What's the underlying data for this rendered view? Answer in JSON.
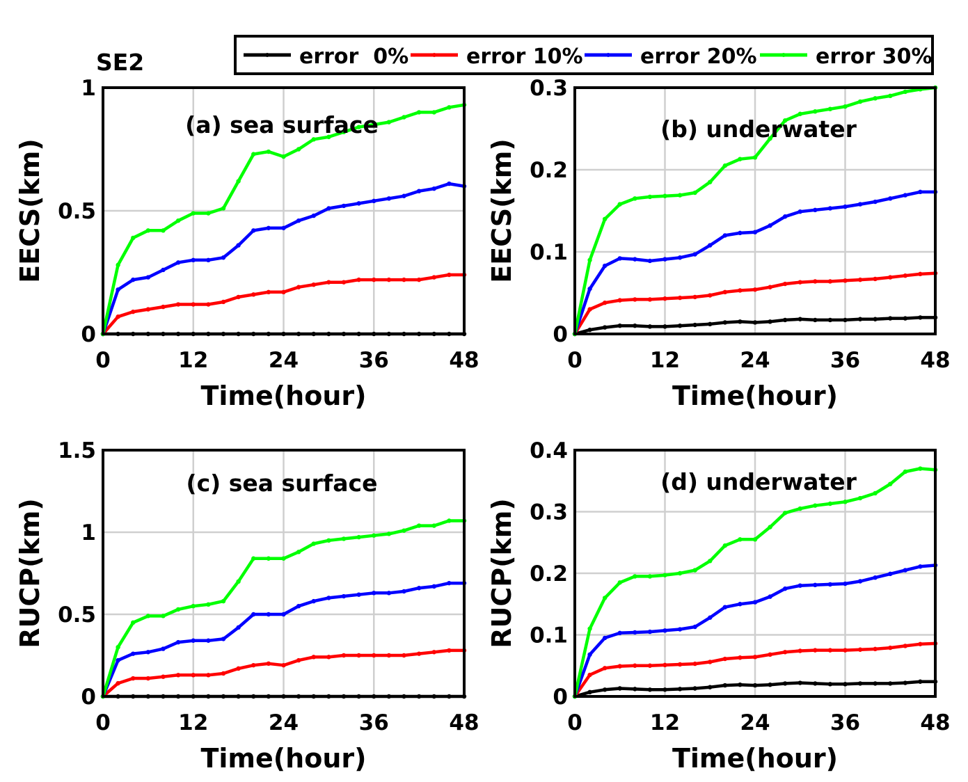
{
  "figure": {
    "tag": "SE2",
    "colors": {
      "error 0%": "#000000",
      "error 10%": "#ff0000",
      "error 20%": "#0000ff",
      "error 30%": "#00ff00"
    }
  },
  "legend": {
    "placement": "top",
    "items": [
      {
        "label": "error  0%",
        "color": "#000000"
      },
      {
        "label": "error 10%",
        "color": "#ff0000"
      },
      {
        "label": "error 20%",
        "color": "#0000ff"
      },
      {
        "label": "error 30%",
        "color": "#00ff00"
      }
    ]
  },
  "chart_data": [
    {
      "type": "line",
      "panel": "a",
      "annotation": "(a) sea surface",
      "xlabel": "Time(hour)",
      "ylabel": "EECS(km)",
      "xlim": [
        0,
        48
      ],
      "ylim": [
        0,
        1
      ],
      "xticks": [
        "0",
        "12",
        "24",
        "36",
        "48"
      ],
      "yticks": [
        "0",
        "0.5",
        "1"
      ],
      "grid": true,
      "x": [
        0,
        2,
        4,
        6,
        8,
        10,
        12,
        14,
        16,
        18,
        20,
        22,
        24,
        26,
        28,
        30,
        32,
        34,
        36,
        38,
        40,
        42,
        44,
        46,
        48
      ],
      "series": [
        {
          "name": "error  0%",
          "values": [
            0,
            0,
            0,
            0,
            0,
            0,
            0,
            0,
            0,
            0,
            0,
            0,
            0,
            0,
            0,
            0,
            0,
            0,
            0,
            0,
            0,
            0,
            0,
            0,
            0
          ]
        },
        {
          "name": "error 10%",
          "values": [
            0,
            0.07,
            0.09,
            0.1,
            0.11,
            0.12,
            0.12,
            0.12,
            0.13,
            0.15,
            0.16,
            0.17,
            0.17,
            0.19,
            0.2,
            0.21,
            0.21,
            0.22,
            0.22,
            0.22,
            0.22,
            0.22,
            0.23,
            0.24,
            0.24
          ]
        },
        {
          "name": "error 20%",
          "values": [
            0,
            0.18,
            0.22,
            0.23,
            0.26,
            0.29,
            0.3,
            0.3,
            0.31,
            0.36,
            0.42,
            0.43,
            0.43,
            0.46,
            0.48,
            0.51,
            0.52,
            0.53,
            0.54,
            0.55,
            0.56,
            0.58,
            0.59,
            0.61,
            0.6
          ]
        },
        {
          "name": "error 30%",
          "values": [
            0,
            0.28,
            0.39,
            0.42,
            0.42,
            0.46,
            0.49,
            0.49,
            0.51,
            0.62,
            0.73,
            0.74,
            0.72,
            0.75,
            0.79,
            0.8,
            0.82,
            0.84,
            0.85,
            0.86,
            0.88,
            0.9,
            0.9,
            0.92,
            0.93
          ]
        }
      ]
    },
    {
      "type": "line",
      "panel": "b",
      "annotation": "(b) underwater",
      "xlabel": "Time(hour)",
      "ylabel": "EECS(km)",
      "xlim": [
        0,
        48
      ],
      "ylim": [
        0,
        0.3
      ],
      "xticks": [
        "0",
        "12",
        "24",
        "36",
        "48"
      ],
      "yticks": [
        "0",
        "0.1",
        "0.2",
        "0.3"
      ],
      "grid": true,
      "x": [
        0,
        2,
        4,
        6,
        8,
        10,
        12,
        14,
        16,
        18,
        20,
        22,
        24,
        26,
        28,
        30,
        32,
        34,
        36,
        38,
        40,
        42,
        44,
        46,
        48
      ],
      "series": [
        {
          "name": "error  0%",
          "values": [
            0,
            0.005,
            0.008,
            0.01,
            0.01,
            0.009,
            0.009,
            0.01,
            0.011,
            0.012,
            0.014,
            0.015,
            0.014,
            0.015,
            0.017,
            0.018,
            0.017,
            0.017,
            0.017,
            0.018,
            0.018,
            0.019,
            0.019,
            0.02,
            0.02
          ]
        },
        {
          "name": "error 10%",
          "values": [
            0,
            0.03,
            0.038,
            0.041,
            0.042,
            0.042,
            0.043,
            0.044,
            0.045,
            0.047,
            0.051,
            0.053,
            0.054,
            0.057,
            0.061,
            0.063,
            0.064,
            0.064,
            0.065,
            0.066,
            0.067,
            0.069,
            0.071,
            0.073,
            0.074
          ]
        },
        {
          "name": "error 20%",
          "values": [
            0,
            0.055,
            0.083,
            0.092,
            0.091,
            0.089,
            0.091,
            0.093,
            0.097,
            0.108,
            0.12,
            0.123,
            0.124,
            0.132,
            0.143,
            0.149,
            0.151,
            0.153,
            0.155,
            0.158,
            0.161,
            0.165,
            0.169,
            0.173,
            0.173
          ]
        },
        {
          "name": "error 30%",
          "values": [
            0,
            0.09,
            0.14,
            0.158,
            0.165,
            0.167,
            0.168,
            0.169,
            0.172,
            0.185,
            0.205,
            0.213,
            0.215,
            0.238,
            0.26,
            0.268,
            0.271,
            0.274,
            0.277,
            0.283,
            0.287,
            0.29,
            0.295,
            0.298,
            0.3
          ]
        }
      ]
    },
    {
      "type": "line",
      "panel": "c",
      "annotation": "(c) sea surface",
      "xlabel": "Time(hour)",
      "ylabel": "RUCP(km)",
      "xlim": [
        0,
        48
      ],
      "ylim": [
        0,
        1.5
      ],
      "xticks": [
        "0",
        "12",
        "24",
        "36",
        "48"
      ],
      "yticks": [
        "0",
        "0.5",
        "1",
        "1.5"
      ],
      "grid": true,
      "x": [
        0,
        2,
        4,
        6,
        8,
        10,
        12,
        14,
        16,
        18,
        20,
        22,
        24,
        26,
        28,
        30,
        32,
        34,
        36,
        38,
        40,
        42,
        44,
        46,
        48
      ],
      "series": [
        {
          "name": "error  0%",
          "values": [
            0,
            0,
            0,
            0,
            0,
            0,
            0,
            0,
            0,
            0,
            0,
            0,
            0,
            0,
            0,
            0,
            0,
            0,
            0,
            0,
            0,
            0,
            0,
            0,
            0
          ]
        },
        {
          "name": "error 10%",
          "values": [
            0,
            0.08,
            0.11,
            0.11,
            0.12,
            0.13,
            0.13,
            0.13,
            0.14,
            0.17,
            0.19,
            0.2,
            0.19,
            0.22,
            0.24,
            0.24,
            0.25,
            0.25,
            0.25,
            0.25,
            0.25,
            0.26,
            0.27,
            0.28,
            0.28
          ]
        },
        {
          "name": "error 20%",
          "values": [
            0,
            0.22,
            0.26,
            0.27,
            0.29,
            0.33,
            0.34,
            0.34,
            0.35,
            0.42,
            0.5,
            0.5,
            0.5,
            0.55,
            0.58,
            0.6,
            0.61,
            0.62,
            0.63,
            0.63,
            0.64,
            0.66,
            0.67,
            0.69,
            0.69
          ]
        },
        {
          "name": "error 30%",
          "values": [
            0,
            0.3,
            0.45,
            0.49,
            0.49,
            0.53,
            0.55,
            0.56,
            0.58,
            0.7,
            0.84,
            0.84,
            0.84,
            0.88,
            0.93,
            0.95,
            0.96,
            0.97,
            0.98,
            0.99,
            1.01,
            1.04,
            1.04,
            1.07,
            1.07
          ]
        }
      ]
    },
    {
      "type": "line",
      "panel": "d",
      "annotation": "(d) underwater",
      "xlabel": "Time(hour)",
      "ylabel": "RUCP(km)",
      "xlim": [
        0,
        48
      ],
      "ylim": [
        0,
        0.4
      ],
      "xticks": [
        "0",
        "12",
        "24",
        "36",
        "48"
      ],
      "yticks": [
        "0",
        "0.1",
        "0.2",
        "0.3",
        "0.4"
      ],
      "grid": true,
      "x": [
        0,
        2,
        4,
        6,
        8,
        10,
        12,
        14,
        16,
        18,
        20,
        22,
        24,
        26,
        28,
        30,
        32,
        34,
        36,
        38,
        40,
        42,
        44,
        46,
        48
      ],
      "series": [
        {
          "name": "error  0%",
          "values": [
            0,
            0.007,
            0.011,
            0.013,
            0.012,
            0.011,
            0.011,
            0.012,
            0.013,
            0.015,
            0.018,
            0.019,
            0.018,
            0.019,
            0.021,
            0.022,
            0.021,
            0.02,
            0.02,
            0.021,
            0.021,
            0.021,
            0.022,
            0.024,
            0.024
          ]
        },
        {
          "name": "error 10%",
          "values": [
            0,
            0.035,
            0.046,
            0.049,
            0.05,
            0.05,
            0.051,
            0.052,
            0.053,
            0.056,
            0.061,
            0.063,
            0.064,
            0.068,
            0.072,
            0.074,
            0.075,
            0.075,
            0.075,
            0.076,
            0.077,
            0.079,
            0.082,
            0.085,
            0.086
          ]
        },
        {
          "name": "error 20%",
          "values": [
            0,
            0.068,
            0.095,
            0.103,
            0.104,
            0.105,
            0.107,
            0.109,
            0.113,
            0.128,
            0.145,
            0.15,
            0.153,
            0.162,
            0.175,
            0.18,
            0.181,
            0.182,
            0.183,
            0.187,
            0.193,
            0.199,
            0.205,
            0.211,
            0.213
          ]
        },
        {
          "name": "error 30%",
          "values": [
            0,
            0.11,
            0.16,
            0.185,
            0.195,
            0.195,
            0.197,
            0.2,
            0.205,
            0.22,
            0.245,
            0.255,
            0.255,
            0.275,
            0.298,
            0.305,
            0.31,
            0.313,
            0.316,
            0.322,
            0.33,
            0.345,
            0.365,
            0.37,
            0.368
          ]
        }
      ]
    }
  ]
}
